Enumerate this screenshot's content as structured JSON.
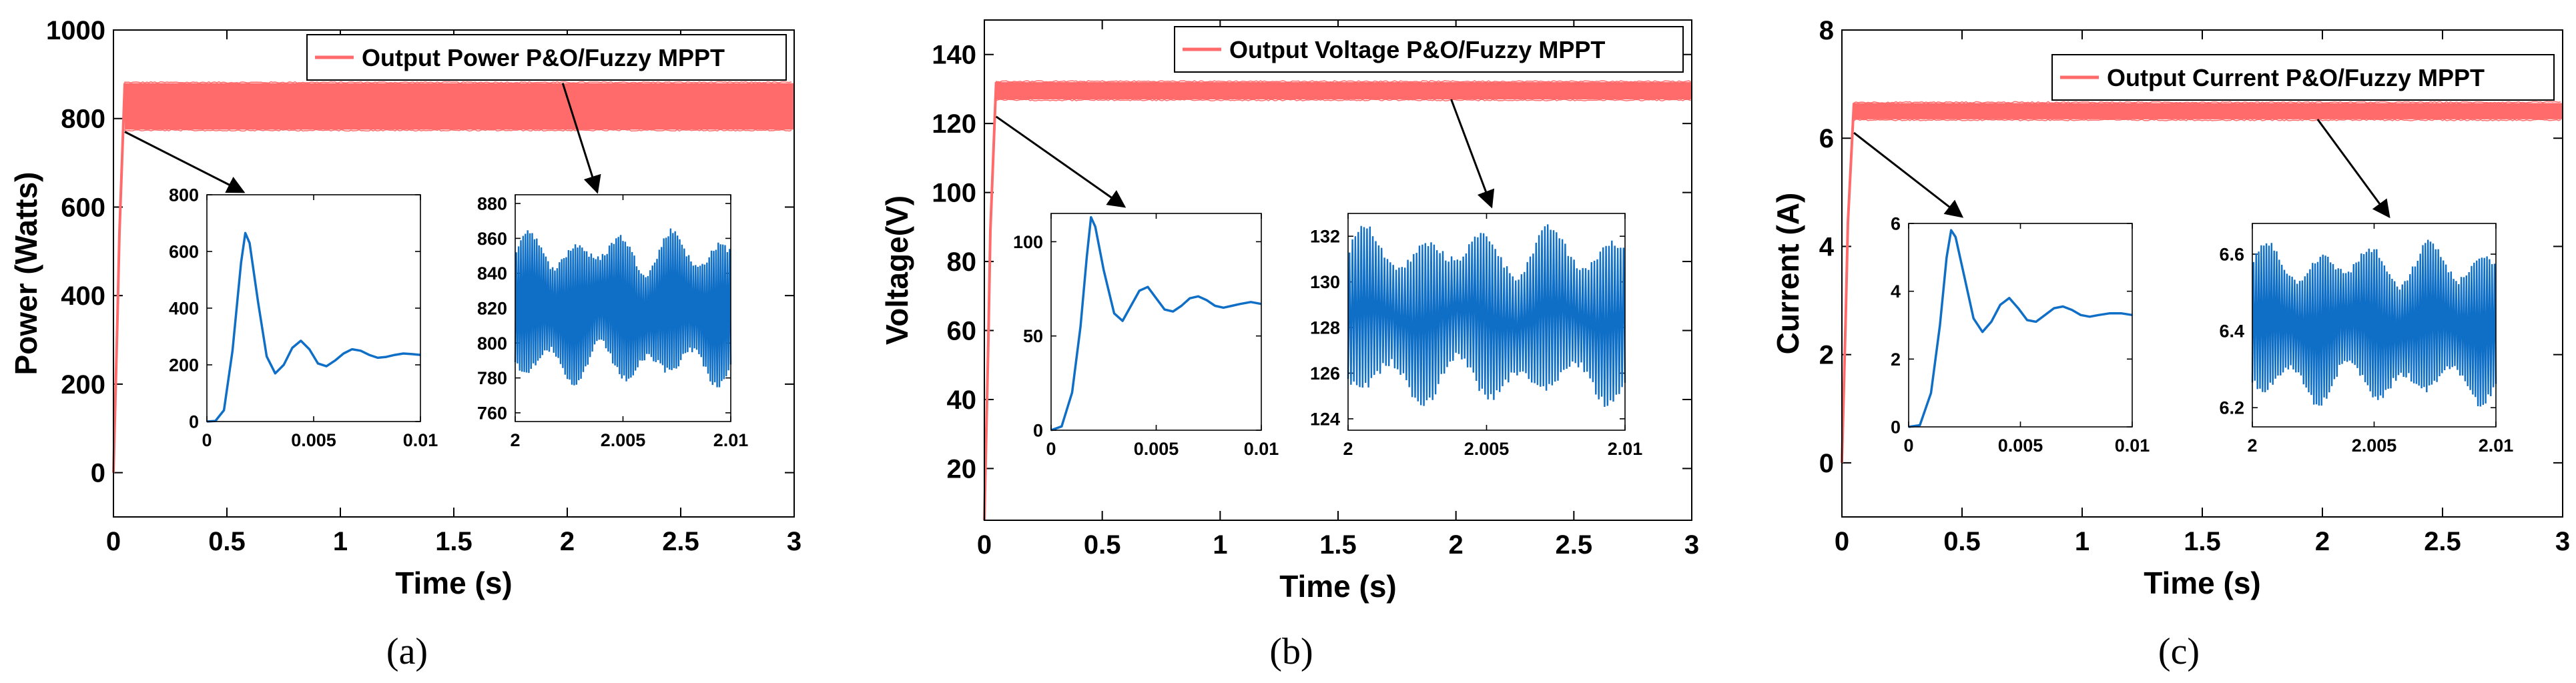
{
  "chart_data": [
    {
      "type": "line",
      "panel_label": "(a)",
      "xlabel": "Time (s)",
      "ylabel": "Power (Watts)",
      "xlim": [
        0,
        3
      ],
      "ylim": [
        -100,
        1000
      ],
      "x_ticks": [
        0,
        0.5,
        1,
        1.5,
        2,
        2.5,
        3
      ],
      "y_ticks": [
        0,
        200,
        400,
        600,
        800,
        1000
      ],
      "legend": "Output Power P&O/Fuzzy MPPT",
      "series": [
        {
          "name": "Output Power P&O/Fuzzy MPPT",
          "color": "#ff6b6b",
          "rise_end": [
            0.05,
            880
          ],
          "band": [
            775,
            880
          ]
        }
      ],
      "insets": [
        {
          "id": "startup",
          "xlim": [
            0,
            0.01
          ],
          "ylim": [
            0,
            800
          ],
          "x_ticks": [
            0,
            0.005,
            0.01
          ],
          "y_ticks": [
            0,
            200,
            400,
            600,
            800
          ],
          "color": "#0f6fc6",
          "points": [
            [
              0,
              0
            ],
            [
              0.0004,
              2
            ],
            [
              0.0008,
              40
            ],
            [
              0.0012,
              250
            ],
            [
              0.0016,
              560
            ],
            [
              0.0018,
              665
            ],
            [
              0.002,
              630
            ],
            [
              0.0024,
              420
            ],
            [
              0.0028,
              230
            ],
            [
              0.0032,
              170
            ],
            [
              0.0036,
              200
            ],
            [
              0.004,
              260
            ],
            [
              0.0044,
              285
            ],
            [
              0.0048,
              255
            ],
            [
              0.0052,
              205
            ],
            [
              0.0056,
              195
            ],
            [
              0.006,
              215
            ],
            [
              0.0064,
              240
            ],
            [
              0.0068,
              255
            ],
            [
              0.0072,
              250
            ],
            [
              0.0076,
              235
            ],
            [
              0.008,
              225
            ],
            [
              0.0084,
              228
            ],
            [
              0.0088,
              235
            ],
            [
              0.0092,
              240
            ],
            [
              0.0096,
              238
            ],
            [
              0.01,
              235
            ]
          ]
        },
        {
          "id": "steady",
          "xlim": [
            2,
            2.01
          ],
          "ylim": [
            755,
            885
          ],
          "x_ticks": [
            2,
            2.005,
            2.01
          ],
          "y_ticks": [
            760,
            780,
            800,
            820,
            840,
            860,
            880
          ],
          "color": "#0f6fc6",
          "center": 820,
          "amplitude": 40,
          "cycles": 95
        }
      ]
    },
    {
      "type": "line",
      "panel_label": "(b)",
      "xlabel": "Time (s)",
      "ylabel": "Voltage(V)",
      "xlim": [
        0,
        3
      ],
      "ylim": [
        5,
        150
      ],
      "x_ticks": [
        0,
        0.5,
        1,
        1.5,
        2,
        2.5,
        3
      ],
      "y_ticks": [
        20,
        40,
        60,
        80,
        100,
        120,
        140
      ],
      "legend": "Output Voltage P&O/Fuzzy MPPT",
      "series": [
        {
          "name": "Output Voltage P&O/Fuzzy MPPT",
          "color": "#ff6b6b",
          "rise_end": [
            0.05,
            132
          ],
          "band": [
            127,
            132
          ]
        }
      ],
      "insets": [
        {
          "id": "startup",
          "xlim": [
            0,
            0.01
          ],
          "ylim": [
            0,
            115
          ],
          "x_ticks": [
            0,
            0.005,
            0.01
          ],
          "y_ticks": [
            0,
            50,
            100
          ],
          "color": "#0f6fc6",
          "points": [
            [
              0,
              0
            ],
            [
              0.0005,
              2
            ],
            [
              0.001,
              20
            ],
            [
              0.0014,
              55
            ],
            [
              0.0017,
              92
            ],
            [
              0.0019,
              113
            ],
            [
              0.0021,
              108
            ],
            [
              0.0025,
              85
            ],
            [
              0.003,
              62
            ],
            [
              0.0034,
              58
            ],
            [
              0.0038,
              66
            ],
            [
              0.0042,
              74
            ],
            [
              0.0046,
              76
            ],
            [
              0.005,
              70
            ],
            [
              0.0054,
              64
            ],
            [
              0.0058,
              63
            ],
            [
              0.0062,
              66
            ],
            [
              0.0066,
              70
            ],
            [
              0.007,
              71
            ],
            [
              0.0074,
              69
            ],
            [
              0.0078,
              66
            ],
            [
              0.0082,
              65
            ],
            [
              0.0086,
              66
            ],
            [
              0.009,
              67
            ],
            [
              0.0095,
              68
            ],
            [
              0.01,
              67
            ]
          ]
        },
        {
          "id": "steady",
          "xlim": [
            2,
            2.01
          ],
          "ylim": [
            123.5,
            133
          ],
          "x_ticks": [
            2,
            2.005,
            2.01
          ],
          "y_ticks": [
            124,
            126,
            128,
            130,
            132
          ],
          "color": "#0f6fc6",
          "center": 128.5,
          "amplitude": 3.5,
          "cycles": 95
        }
      ]
    },
    {
      "type": "line",
      "panel_label": "(c)",
      "xlabel": "Time (s)",
      "ylabel": "Current (A)",
      "xlim": [
        0,
        3
      ],
      "ylim": [
        -1,
        8
      ],
      "x_ticks": [
        0,
        0.5,
        1,
        1.5,
        2,
        2.5,
        3
      ],
      "y_ticks": [
        0,
        2,
        4,
        6,
        8
      ],
      "legend": "Output Current P&O/Fuzzy MPPT",
      "series": [
        {
          "name": "Output Current P&O/Fuzzy MPPT",
          "color": "#ff6b6b",
          "rise_end": [
            0.05,
            6.65
          ],
          "band": [
            6.35,
            6.65
          ]
        }
      ],
      "insets": [
        {
          "id": "startup",
          "xlim": [
            0,
            0.01
          ],
          "ylim": [
            0,
            6
          ],
          "x_ticks": [
            0,
            0.005,
            0.01
          ],
          "y_ticks": [
            0,
            2,
            4,
            6
          ],
          "color": "#0f6fc6",
          "points": [
            [
              0,
              0
            ],
            [
              0.0005,
              0.05
            ],
            [
              0.001,
              1.0
            ],
            [
              0.0014,
              3.0
            ],
            [
              0.0017,
              5.0
            ],
            [
              0.0019,
              5.8
            ],
            [
              0.0021,
              5.6
            ],
            [
              0.0025,
              4.4
            ],
            [
              0.0029,
              3.2
            ],
            [
              0.0033,
              2.8
            ],
            [
              0.0037,
              3.1
            ],
            [
              0.0041,
              3.6
            ],
            [
              0.0045,
              3.8
            ],
            [
              0.0049,
              3.5
            ],
            [
              0.0053,
              3.15
            ],
            [
              0.0057,
              3.1
            ],
            [
              0.0061,
              3.3
            ],
            [
              0.0065,
              3.5
            ],
            [
              0.0069,
              3.55
            ],
            [
              0.0073,
              3.45
            ],
            [
              0.0077,
              3.3
            ],
            [
              0.0081,
              3.25
            ],
            [
              0.0085,
              3.3
            ],
            [
              0.009,
              3.35
            ],
            [
              0.0095,
              3.35
            ],
            [
              0.01,
              3.3
            ]
          ]
        },
        {
          "id": "steady",
          "xlim": [
            2,
            2.01
          ],
          "ylim": [
            6.15,
            6.68
          ],
          "x_ticks": [
            2,
            2.005,
            2.01
          ],
          "y_ticks": [
            6.2,
            6.4,
            6.6
          ],
          "color": "#0f6fc6",
          "center": 6.42,
          "amplitude": 0.19,
          "cycles": 95
        }
      ]
    }
  ]
}
